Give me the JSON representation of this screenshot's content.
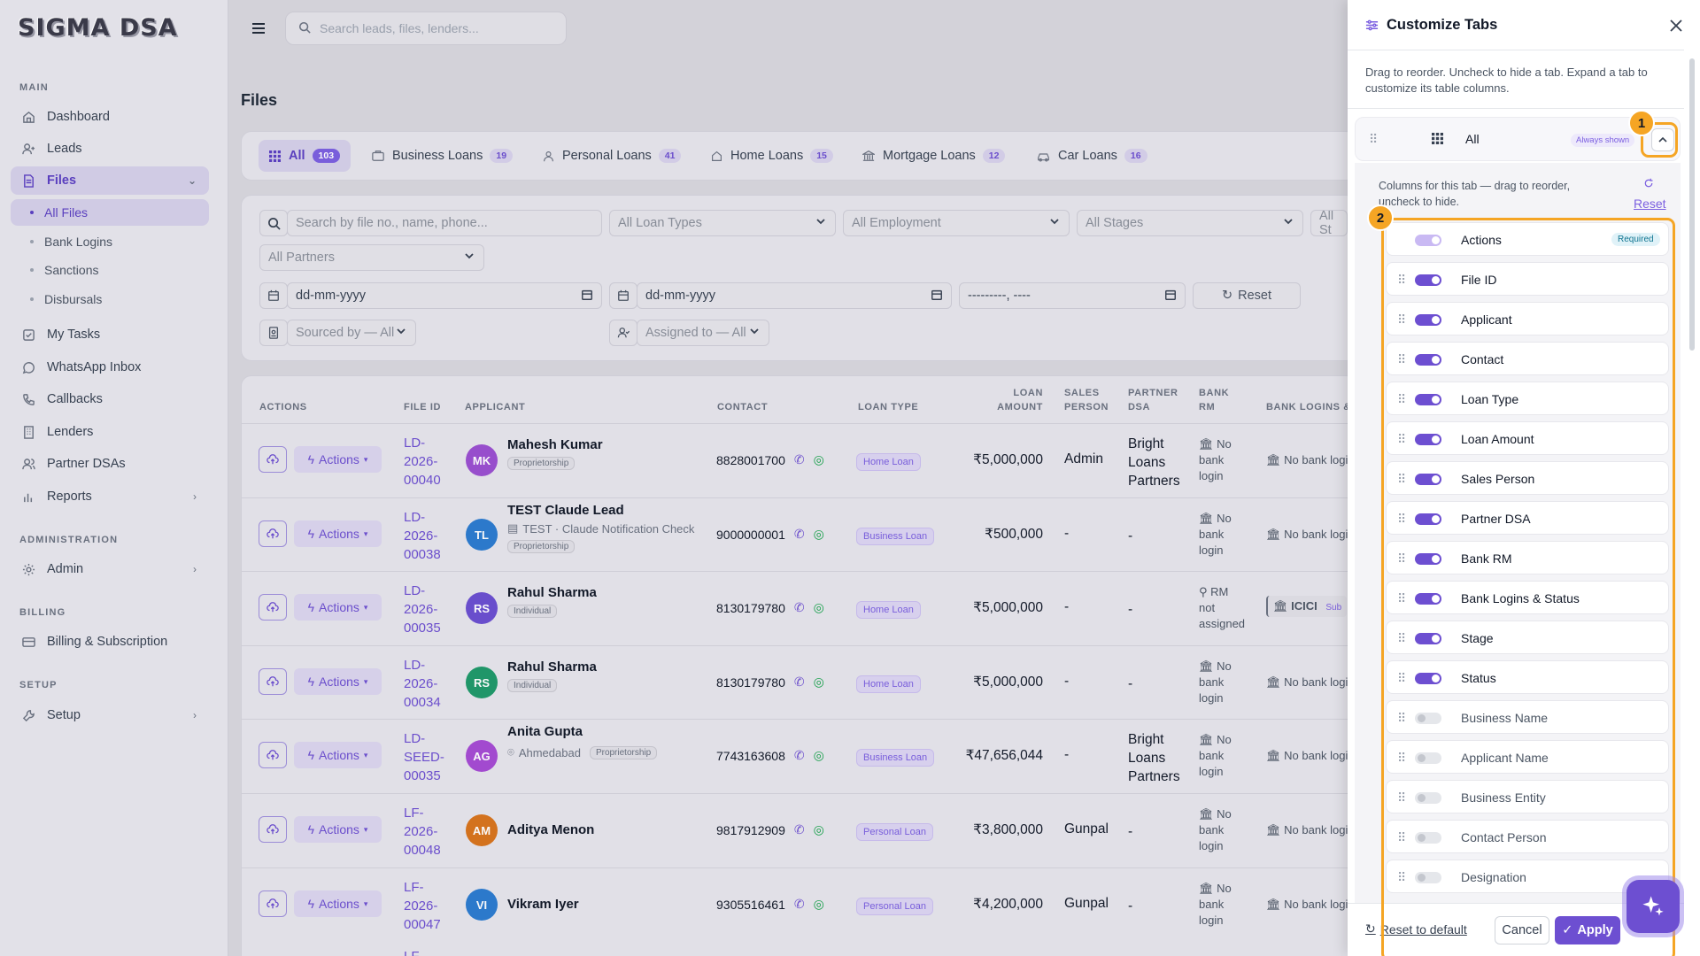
{
  "brand": {
    "logo": "SIGMA DSA"
  },
  "header": {
    "search_placeholder": "Search leads, files, lenders..."
  },
  "sidebar": {
    "sections": {
      "main": "MAIN",
      "administration": "ADMINISTRATION",
      "billing": "BILLING",
      "setup": "SETUP"
    },
    "items": {
      "dashboard": "Dashboard",
      "leads": "Leads",
      "files": "Files",
      "all_files": "All Files",
      "bank_logins": "Bank Logins",
      "sanctions": "Sanctions",
      "disbursals": "Disbursals",
      "my_tasks": "My Tasks",
      "whatsapp": "WhatsApp Inbox",
      "callbacks": "Callbacks",
      "lenders": "Lenders",
      "partner_dsas": "Partner DSAs",
      "reports": "Reports",
      "admin": "Admin",
      "billing": "Billing & Subscription",
      "setup": "Setup"
    }
  },
  "page": {
    "title": "Files"
  },
  "tabs": [
    {
      "label": "All",
      "count": "103",
      "icon": "grid-icon"
    },
    {
      "label": "Business Loans",
      "count": "19",
      "icon": "briefcase-icon"
    },
    {
      "label": "Personal Loans",
      "count": "41",
      "icon": "person-icon"
    },
    {
      "label": "Home Loans",
      "count": "15",
      "icon": "home-icon"
    },
    {
      "label": "Mortgage Loans",
      "count": "12",
      "icon": "bank-icon"
    },
    {
      "label": "Car Loans",
      "count": "16",
      "icon": "car-icon"
    }
  ],
  "filters": {
    "search_placeholder": "Search by file no., name, phone...",
    "loan_types": "All Loan Types",
    "employment": "All Employment",
    "stages": "All Stages",
    "status_cut": "All St",
    "partners": "All Partners",
    "date_from": "dd-mm-yyyy",
    "date_to": "dd-mm-yyyy",
    "month": "---------, ----",
    "reset": "Reset",
    "sourced_by": "Sourced by — All",
    "assigned_to": "Assigned to — All"
  },
  "table": {
    "headers": {
      "actions": "ACTIONS",
      "file_id": "FILE ID",
      "applicant": "APPLICANT",
      "contact": "CONTACT",
      "loan_type": "LOAN TYPE",
      "loan_amount_1": "LOAN",
      "loan_amount_2": "AMOUNT",
      "sales_1": "SALES",
      "sales_2": "PERSON",
      "partner_1": "PARTNER",
      "partner_2": "DSA",
      "bankrm_1": "BANK",
      "bankrm_2": "RM",
      "banklogins": "BANK LOGINS &"
    },
    "actions_label": "Actions",
    "rows": [
      {
        "id1": "LD-",
        "id2": "2026-",
        "id3": "00040",
        "initials": "MK",
        "avatar_color": "#9b4fd1",
        "name": "Mahesh Kumar",
        "sub_icon": "",
        "sub_text": "",
        "badge": "Proprietorship",
        "phone": "8828001700",
        "loan": "Home Loan",
        "amount": "₹5,000,000",
        "sales": "Admin",
        "p1": "Bright",
        "p2": "Loans",
        "p3": "Partners",
        "rm1": "No",
        "rm2": "bank",
        "rm3": "login",
        "bl": "No bank logi"
      },
      {
        "id1": "LD-",
        "id2": "2026-",
        "id3": "00038",
        "initials": "TL",
        "avatar_color": "#2b7bd0",
        "name": "TEST Claude Lead",
        "sub_icon": "building",
        "sub_text": "TEST · Claude Notification Check",
        "badge": "Proprietorship",
        "phone": "9000000001",
        "loan": "Business Loan",
        "amount": "₹500,000",
        "sales": "-",
        "p1": "-",
        "p2": "",
        "p3": "",
        "rm1": "No",
        "rm2": "bank",
        "rm3": "login",
        "bl": "No bank logi"
      },
      {
        "id1": "LD-",
        "id2": "2026-",
        "id3": "00035",
        "initials": "RS",
        "avatar_color": "#6b4fd1",
        "name": "Rahul Sharma",
        "sub_icon": "",
        "sub_text": "",
        "badge": "Individual",
        "phone": "8130179780",
        "loan": "Home Loan",
        "amount": "₹5,000,000",
        "sales": "-",
        "p1": "-",
        "p2": "",
        "p3": "",
        "rm1": "RM",
        "rm2": "not",
        "rm3": "assigned",
        "bl": "ICICI",
        "bl_tag": "Sub"
      },
      {
        "id1": "LD-",
        "id2": "2026-",
        "id3": "00034",
        "initials": "RS",
        "avatar_color": "#1f9a6a",
        "name": "Rahul Sharma",
        "sub_icon": "",
        "sub_text": "",
        "badge": "Individual",
        "phone": "8130179780",
        "loan": "Home Loan",
        "amount": "₹5,000,000",
        "sales": "-",
        "p1": "-",
        "p2": "",
        "p3": "",
        "rm1": "No",
        "rm2": "bank",
        "rm3": "login",
        "bl": "No bank logi"
      },
      {
        "id1": "LD-",
        "id2": "SEED-",
        "id3": "00035",
        "initials": "AG",
        "avatar_color": "#a64ad4",
        "name": "Anita Gupta",
        "sub_icon": "pin",
        "sub_text": "Ahmedabad",
        "badge": "Proprietorship",
        "phone": "7743163608",
        "loan": "Business Loan",
        "amount": "₹47,656,044",
        "sales": "-",
        "p1": "Bright",
        "p2": "Loans",
        "p3": "Partners",
        "rm1": "No",
        "rm2": "bank",
        "rm3": "login",
        "bl": "No bank logi"
      },
      {
        "id1": "LF-",
        "id2": "2026-",
        "id3": "00048",
        "initials": "AM",
        "avatar_color": "#d9741c",
        "name": "Aditya Menon",
        "sub_icon": "",
        "sub_text": "",
        "badge": "",
        "phone": "9817912909",
        "loan": "Personal Loan",
        "amount": "₹3,800,000",
        "sales": "Gunpal",
        "p1": "-",
        "p2": "",
        "p3": "",
        "rm1": "No",
        "rm2": "bank",
        "rm3": "login",
        "bl": "No bank logi"
      },
      {
        "id1": "LF-",
        "id2": "2026-",
        "id3": "00047",
        "initials": "VI",
        "avatar_color": "#2b7bd0",
        "name": "Vikram Iyer",
        "sub_icon": "",
        "sub_text": "",
        "badge": "",
        "phone": "9305516461",
        "loan": "Personal Loan",
        "amount": "₹4,200,000",
        "sales": "Gunpal",
        "p1": "-",
        "p2": "",
        "p3": "",
        "rm1": "No",
        "rm2": "bank",
        "rm3": "login",
        "bl": "No bank logi"
      }
    ],
    "next_row_id": "LF-"
  },
  "panel": {
    "title": "Customize Tabs",
    "description": "Drag to reorder. Uncheck to hide a tab. Expand a tab to customize its table columns.",
    "tab_label": "All",
    "always_shown": "Always shown",
    "columns_desc": "Columns for this tab — drag to reorder, uncheck to hide.",
    "columns_reset": "Reset",
    "required_label": "Required",
    "columns": [
      {
        "label": "Actions",
        "state": "required"
      },
      {
        "label": "File ID",
        "state": "on"
      },
      {
        "label": "Applicant",
        "state": "on"
      },
      {
        "label": "Contact",
        "state": "on"
      },
      {
        "label": "Loan Type",
        "state": "on"
      },
      {
        "label": "Loan Amount",
        "state": "on"
      },
      {
        "label": "Sales Person",
        "state": "on"
      },
      {
        "label": "Partner DSA",
        "state": "on"
      },
      {
        "label": "Bank RM",
        "state": "on"
      },
      {
        "label": "Bank Logins & Status",
        "state": "on"
      },
      {
        "label": "Stage",
        "state": "on"
      },
      {
        "label": "Status",
        "state": "on"
      },
      {
        "label": "Business Name",
        "state": "off"
      },
      {
        "label": "Applicant Name",
        "state": "off"
      },
      {
        "label": "Business Entity",
        "state": "off"
      },
      {
        "label": "Contact Person",
        "state": "off"
      },
      {
        "label": "Designation",
        "state": "off"
      }
    ],
    "footer": {
      "reset_default": "Reset to default",
      "cancel": "Cancel",
      "apply": "Apply"
    },
    "annotations": {
      "one": "1",
      "two": "2"
    }
  },
  "colors": {
    "accent": "#6d4fd1",
    "highlight": "#f5a524"
  }
}
